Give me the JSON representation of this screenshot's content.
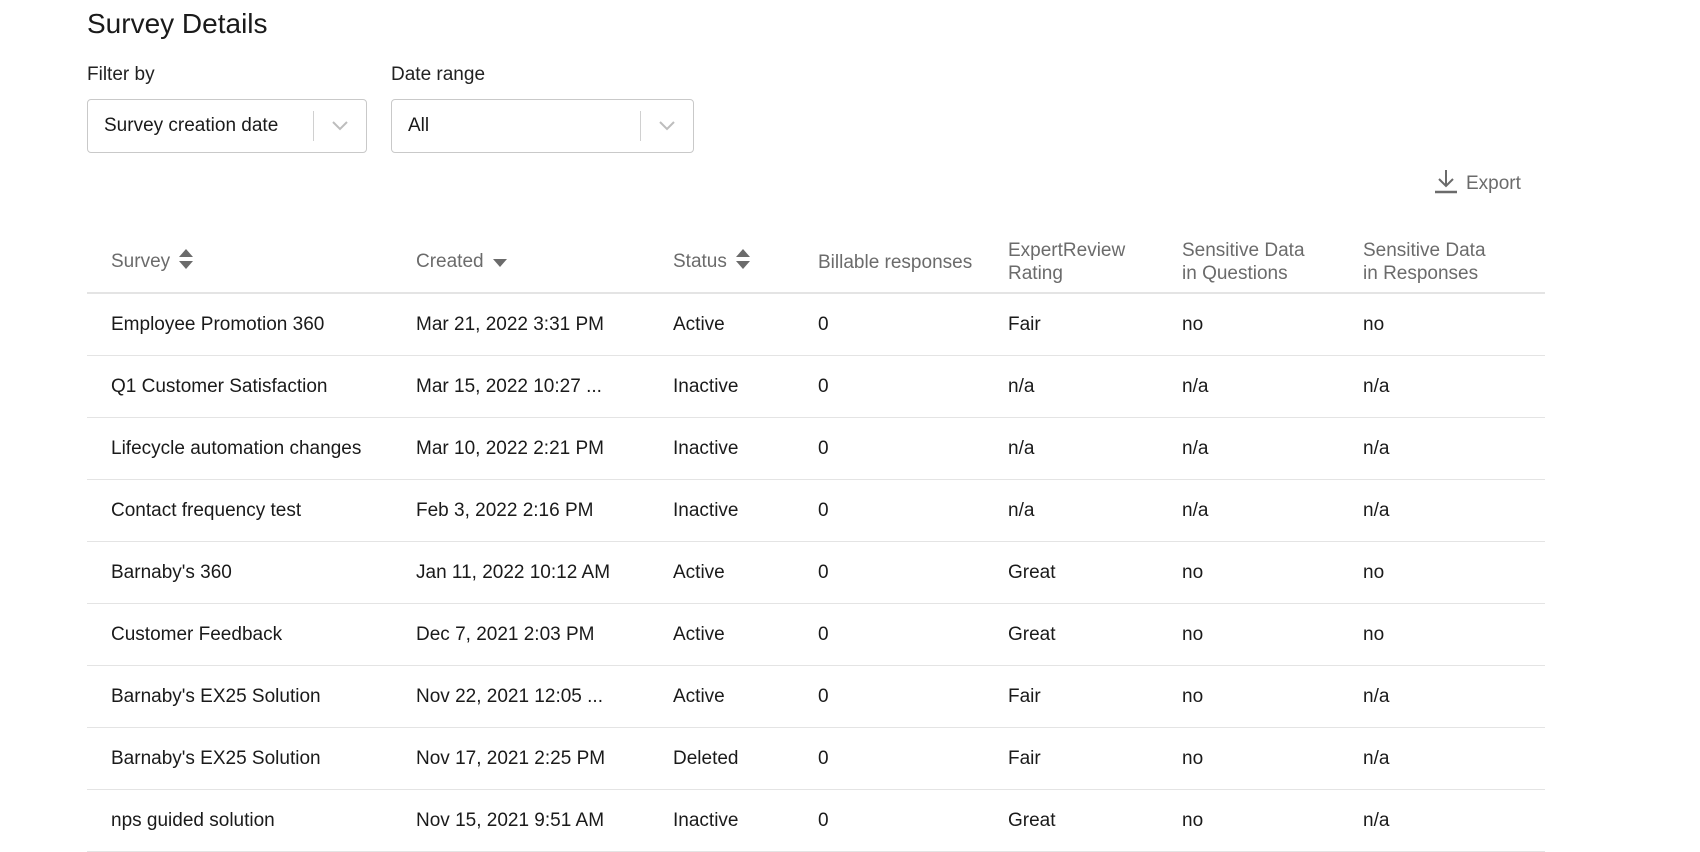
{
  "page_title": "Survey Details",
  "filters": {
    "filter_by": {
      "label": "Filter by",
      "value": "Survey creation date"
    },
    "date_range": {
      "label": "Date range",
      "value": "All"
    }
  },
  "export_label": "Export",
  "table": {
    "headers": {
      "survey": "Survey",
      "created": "Created",
      "status": "Status",
      "billable": "Billable responses",
      "expert_1": "ExpertReview",
      "expert_2": "Rating",
      "sq_1": "Sensitive Data",
      "sq_2": "in Questions",
      "sr_1": "Sensitive Data",
      "sr_2": "in Responses"
    },
    "sort": {
      "survey": "unsorted",
      "created": "descending",
      "status": "unsorted"
    },
    "rows": [
      [
        "Employee Promotion 360",
        "Mar 21, 2022 3:31 PM",
        "Active",
        "0",
        "Fair",
        "no",
        "no"
      ],
      [
        "Q1 Customer Satisfaction",
        "Mar 15, 2022 10:27 ...",
        "Inactive",
        "0",
        "n/a",
        "n/a",
        "n/a"
      ],
      [
        "Lifecycle automation changes",
        "Mar 10, 2022 2:21 PM",
        "Inactive",
        "0",
        "n/a",
        "n/a",
        "n/a"
      ],
      [
        "Contact frequency test",
        "Feb 3, 2022 2:16 PM",
        "Inactive",
        "0",
        "n/a",
        "n/a",
        "n/a"
      ],
      [
        "Barnaby's 360",
        "Jan 11, 2022 10:12 AM",
        "Active",
        "0",
        "Great",
        "no",
        "no"
      ],
      [
        "Customer Feedback",
        "Dec 7, 2021 2:03 PM",
        "Active",
        "0",
        "Great",
        "no",
        "no"
      ],
      [
        "Barnaby's EX25 Solution",
        "Nov 22, 2021 12:05 ...",
        "Active",
        "0",
        "Fair",
        "no",
        "n/a"
      ],
      [
        "Barnaby's EX25 Solution",
        "Nov 17, 2021 2:25 PM",
        "Deleted",
        "0",
        "Fair",
        "no",
        "n/a"
      ],
      [
        "nps guided solution",
        "Nov 15, 2021 9:51 AM",
        "Inactive",
        "0",
        "Great",
        "no",
        "n/a"
      ]
    ]
  }
}
